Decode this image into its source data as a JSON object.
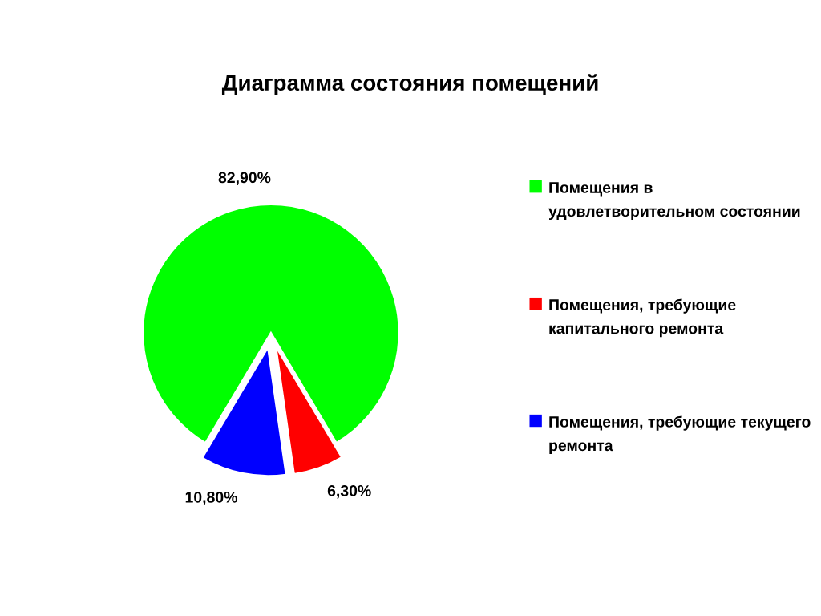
{
  "chart_data": {
    "type": "pie",
    "title": "Диаграмма состояния помещений",
    "categories": [
      "Помещения в удовлетворительном состоянии",
      "Помещения, требующие капитального ремонта",
      "Помещения, требующие текущего ремонта"
    ],
    "values": [
      82.9,
      6.3,
      10.8
    ],
    "colors": [
      "#00ff00",
      "#ff0000",
      "#0000ff"
    ],
    "value_labels": [
      "82,90%",
      "6,30%",
      "10,80%"
    ],
    "legend": "right"
  }
}
